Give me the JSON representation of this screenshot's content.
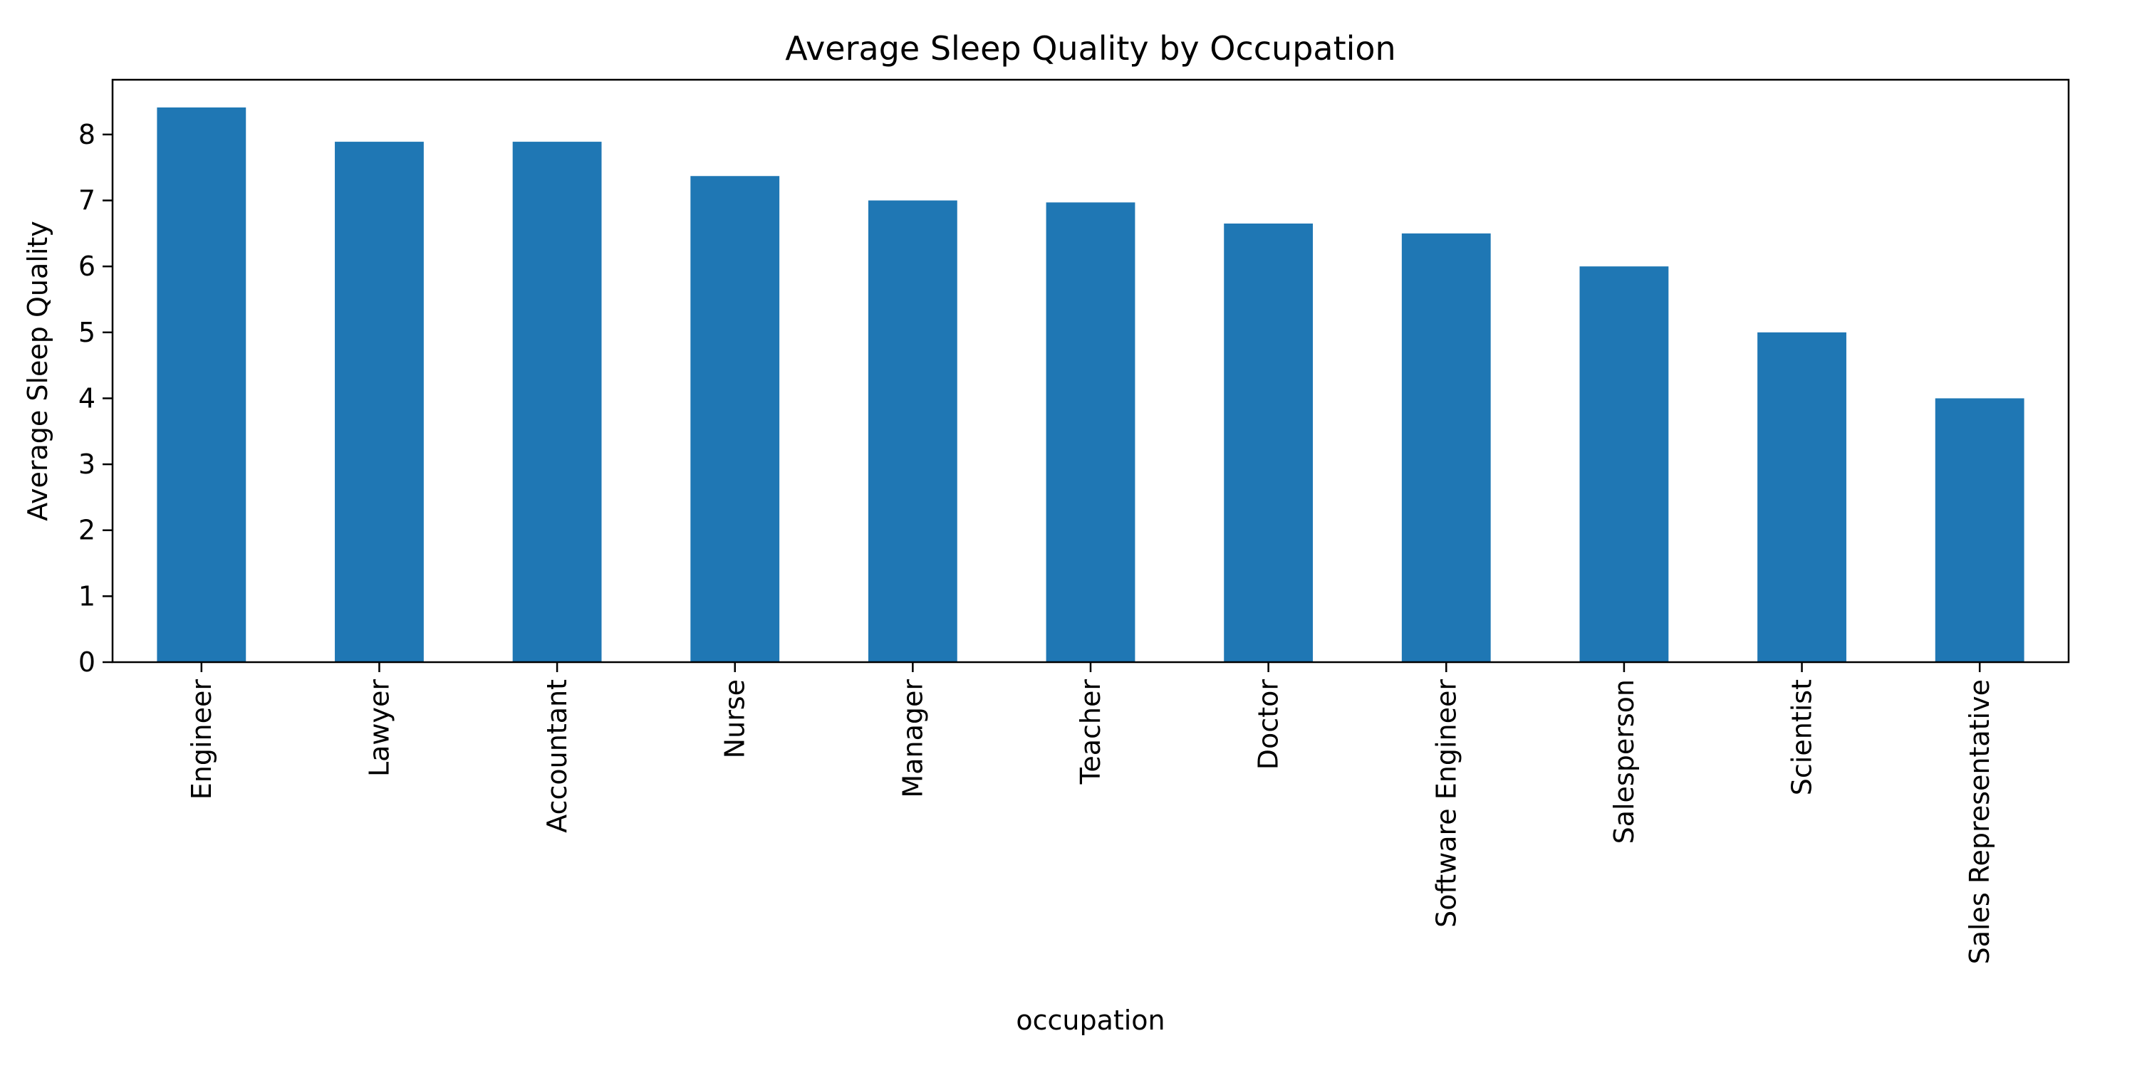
{
  "chart_data": {
    "type": "bar",
    "title": "Average Sleep Quality by Occupation",
    "xlabel": "occupation",
    "ylabel": "Average Sleep Quality",
    "categories": [
      "Engineer",
      "Lawyer",
      "Accountant",
      "Nurse",
      "Manager",
      "Teacher",
      "Doctor",
      "Software Engineer",
      "Salesperson",
      "Scientist",
      "Sales Representative"
    ],
    "values": [
      8.41,
      7.89,
      7.89,
      7.37,
      7.0,
      6.97,
      6.65,
      6.5,
      6.0,
      5.0,
      4.0
    ],
    "ylim": [
      0,
      8.83
    ],
    "yticks": [
      0,
      1,
      2,
      3,
      4,
      5,
      6,
      7,
      8
    ],
    "grid": false,
    "legend": "none",
    "bar_color": "#1f77b4"
  }
}
